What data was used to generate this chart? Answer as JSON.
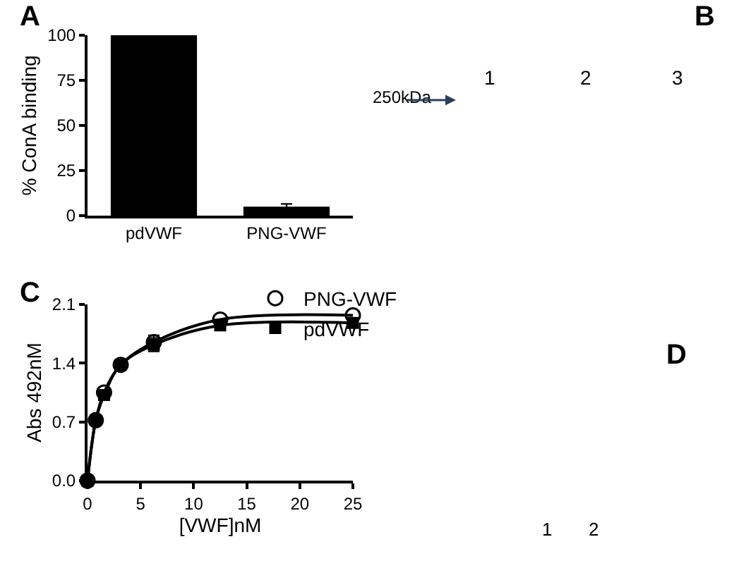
{
  "chart_data": [
    {
      "type": "bar",
      "title": "A",
      "ylabel": "% ConA binding",
      "categories": [
        "pdVWF",
        "PNG-VWF"
      ],
      "series": [
        {
          "color": "#000000",
          "values": [
            100,
            5
          ],
          "errors": [
            null,
            1.5
          ]
        }
      ],
      "ylim": [
        0,
        100
      ],
      "yticks": [
        0,
        25,
        50,
        75,
        100
      ],
      "legend": false
    },
    {
      "type": "other",
      "title": "B",
      "annotations": [
        "250kDa",
        "1",
        "2",
        "3"
      ]
    },
    {
      "type": "line",
      "title": "C",
      "xlabel": "[VWF]nM",
      "ylabel": "Abs 492nM",
      "legend": "top right",
      "series": [
        {
          "name": "pdVWF",
          "color": "#000000",
          "marker": "square",
          "x": [
            0,
            0.78,
            1.56,
            3.125,
            6.25,
            12.5,
            25
          ],
          "values": [
            0,
            0.72,
            1.02,
            1.38,
            1.62,
            1.85,
            1.88
          ],
          "errors": [
            null,
            null,
            null,
            null,
            0.08,
            null,
            null
          ]
        },
        {
          "name": "PNG-VWF",
          "color": "#000000",
          "marker": "circle",
          "x": [
            0,
            0.78,
            1.56,
            3.125,
            6.25,
            12.5,
            25
          ],
          "values": [
            0,
            0.72,
            1.05,
            1.38,
            1.65,
            1.92,
            1.97
          ],
          "errors": [
            null,
            null,
            null,
            null,
            0.08,
            null,
            null
          ]
        }
      ],
      "xlim": [
        0,
        25
      ],
      "xticks": [
        0,
        5,
        10,
        15,
        20,
        25
      ],
      "ylim": [
        0,
        2.1
      ],
      "yticks": [
        {
          "value": 0,
          "label": "0.0"
        },
        0.7,
        1.4,
        2.1
      ]
    },
    {
      "type": "other",
      "title": "D",
      "annotations": [
        "1",
        "2"
      ]
    }
  ]
}
